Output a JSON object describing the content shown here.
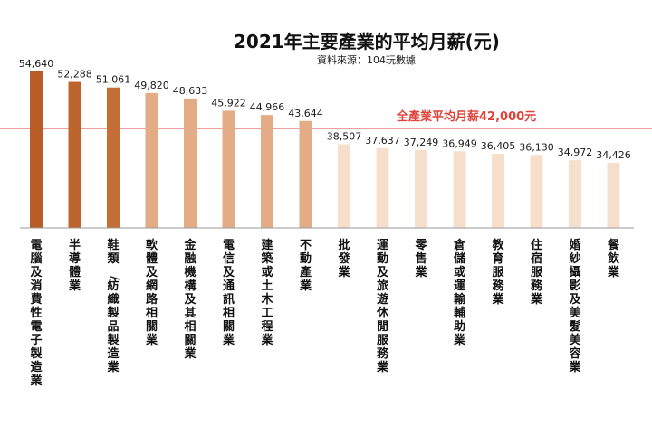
{
  "chart_data": {
    "type": "bar",
    "title": "2021年主要產業的平均月薪(元)",
    "subtitle": "資料來源：104玩數據",
    "categories": [
      "電腦及消費性電子製造業",
      "半導體業",
      "鞋類/紡織製品製造業",
      "軟體及網路相關業",
      "金融機構及其相關業",
      "電信及通訊相關業",
      "建築或土木工程業",
      "不動產業",
      "批發業",
      "運動及旅遊休閒服務業",
      "零售業",
      "倉儲或運輸輔助業",
      "教育服務業",
      "住宿服務業",
      "婚紗攝影及美髮美容業",
      "餐飲業"
    ],
    "values": [
      54640,
      52288,
      51061,
      49820,
      48633,
      45922,
      44966,
      43644,
      38507,
      37637,
      37249,
      36949,
      36405,
      36130,
      34972,
      34426
    ],
    "value_labels": [
      "54,640",
      "52,288",
      "51,061",
      "49,820",
      "48,633",
      "45,922",
      "44,966",
      "43,644",
      "38,507",
      "37,637",
      "37,249",
      "36,949",
      "36,405",
      "36,130",
      "34,972",
      "34,426"
    ],
    "reference_line": {
      "value": 42000,
      "label": "全產業平均月薪42,000元"
    },
    "colors": {
      "bars": [
        "#b85c2a",
        "#bd632e",
        "#c66e37",
        "#e2ac86",
        "#e2ac86",
        "#e2ac86",
        "#e2ac86",
        "#e2ac86",
        "#f7dfcd",
        "#f7dfcd",
        "#f7dfcd",
        "#f7dfcd",
        "#f7dfcd",
        "#f7dfcd",
        "#f7dfcd",
        "#f7dfcd"
      ],
      "reference": "#e0423a",
      "baseline": "#9a9a9a"
    },
    "grid": false,
    "legend": "none"
  }
}
